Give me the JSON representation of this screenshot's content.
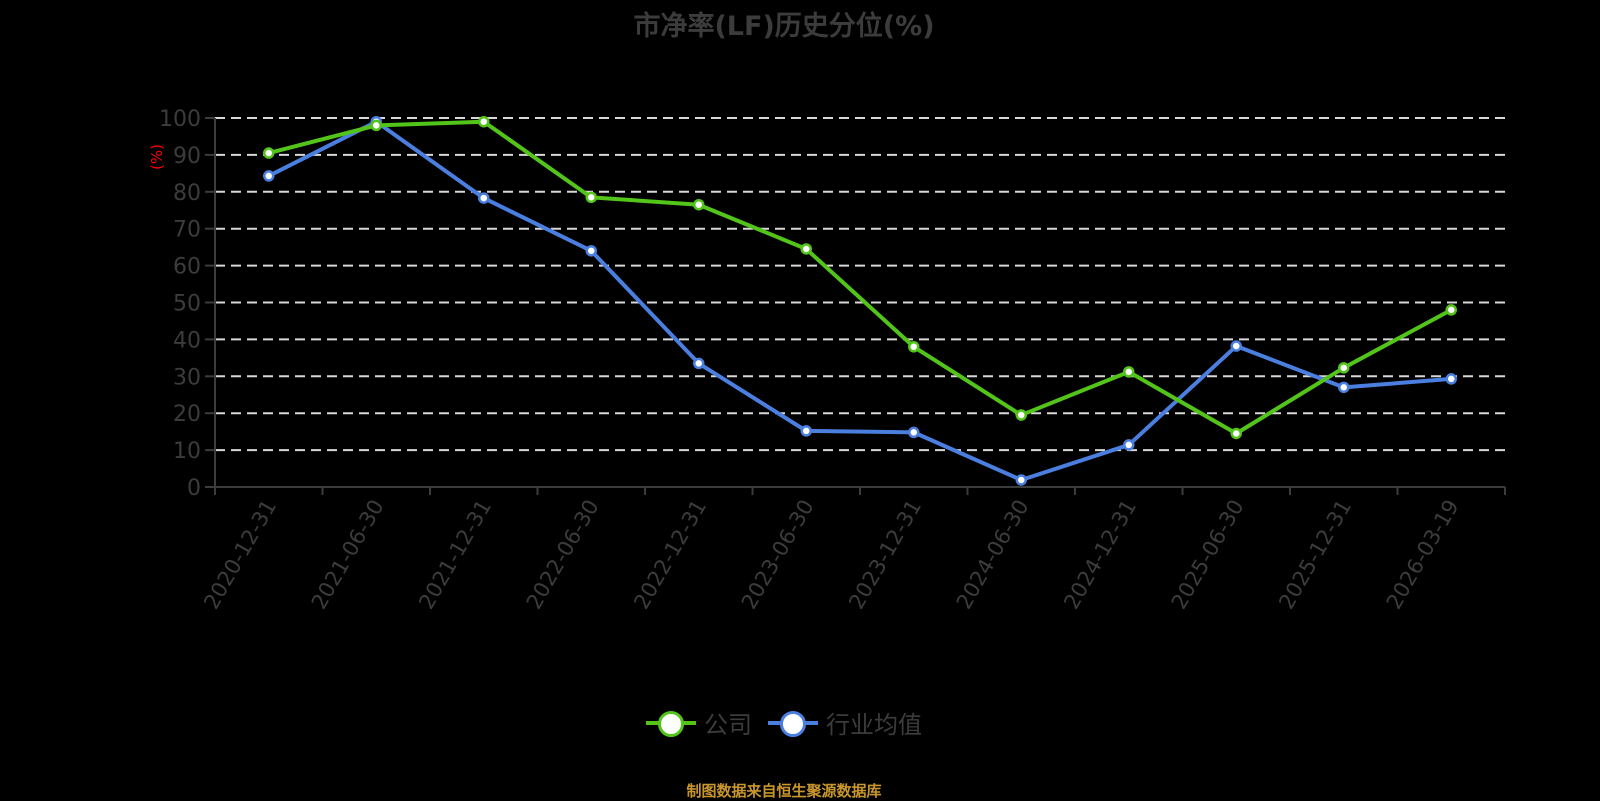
{
  "title": "市净率(LF)历史分位(%)",
  "y_axis_unit": "(%)",
  "legend": [
    {
      "label": "公司",
      "color": "#52c41a"
    },
    {
      "label": "行业均值",
      "color": "#4a7fe0"
    }
  ],
  "source": "制图数据来自恒生聚源数据库",
  "chart_data": {
    "type": "line",
    "title": "市净率(LF)历史分位(%)",
    "xlabel": "",
    "ylabel": "(%)",
    "ylim": [
      0,
      100
    ],
    "yticks": [
      0,
      10,
      20,
      30,
      40,
      50,
      60,
      70,
      80,
      90,
      100
    ],
    "grid": true,
    "legend_position": "bottom",
    "categories": [
      "2020-12-31",
      "2021-06-30",
      "2021-12-31",
      "2022-06-30",
      "2022-12-31",
      "2023-06-30",
      "2023-12-31",
      "2024-06-30",
      "2024-12-31",
      "2025-06-30",
      "2025-12-31",
      "2026-03-19"
    ],
    "series": [
      {
        "name": "公司",
        "color": "#52c41a",
        "values": [
          90.5,
          98,
          99,
          78.5,
          76.5,
          64.5,
          38,
          19.5,
          31.2,
          14.5,
          32.3,
          48
        ]
      },
      {
        "name": "行业均值",
        "color": "#4a7fe0",
        "values": [
          84.3,
          99,
          78.3,
          64,
          33.5,
          15.2,
          14.8,
          1.9,
          11.4,
          38.2,
          27,
          29.3
        ]
      }
    ]
  }
}
